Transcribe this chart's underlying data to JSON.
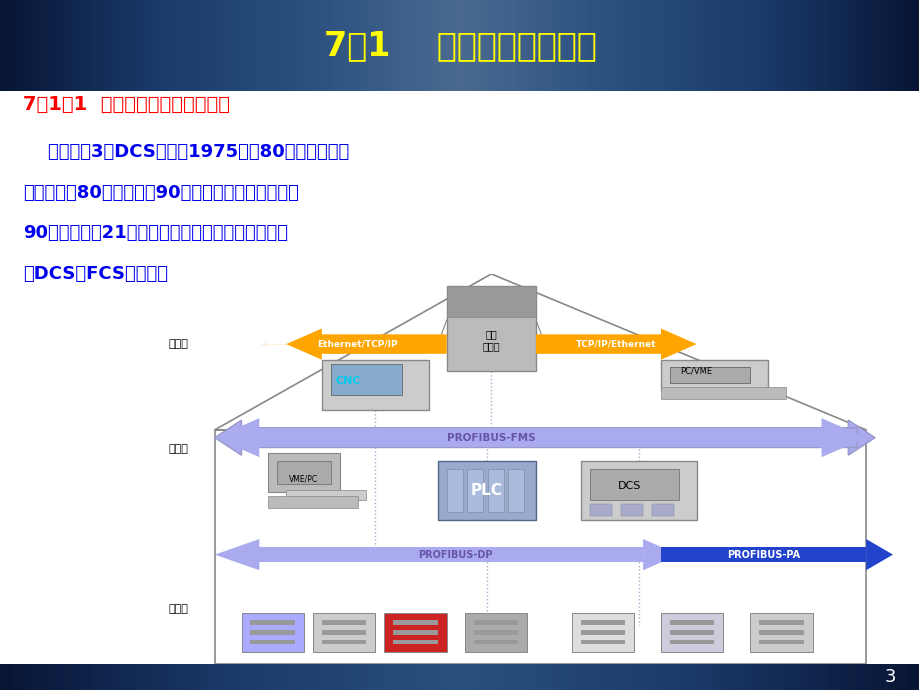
{
  "title": "7．1    集散控制系统简介",
  "title_color": "#FFFF00",
  "subtitle": "7．1．1  集散控制系统的发展历程",
  "subtitle_color": "#FF0000",
  "body_lines": [
    "    共出现了3代DCS产品。1975年至80年代前期为第",
    "一代产品，80年代中期至90年代前期为第二代产品，",
    "90年代中期至21世纪初为第三代产品。目前发展成",
    "为DCS与FCS的集成。"
  ],
  "body_color": "#0000EE",
  "bg_color": "#FFFFFF",
  "page_number": "3",
  "page_number_color": "#FFFFFF",
  "diagram_label_factory": "工厂级",
  "diagram_label_workshop": "车间级",
  "diagram_label_field": "现场级",
  "diagram_label_region_ctrl": "区域\n控制器",
  "diagram_label_ethernet1": "Ethernet/TCP/IP",
  "diagram_label_ethernet2": "TCP/IP/Ethernet",
  "diagram_label_profibus_fms": "PROFIBUS-FMS",
  "diagram_label_profibus_dp": "PROFIBUS-DP",
  "diagram_label_profibus_pa": "PROFIBUS-PA",
  "diagram_label_cnc": "CNC",
  "diagram_label_pcvme": "PC/VME",
  "diagram_label_vmepc": "VME/PC",
  "diagram_label_plc": "PLC",
  "diagram_label_dcs": "DCS",
  "orange": "#FFA500",
  "blue_light": "#AAAAEE",
  "blue_dark": "#2222CC",
  "blue_profibus": "#9999DD",
  "gray_box": "#CCCCCC",
  "gray_line": "#888888",
  "white": "#FFFFFF"
}
